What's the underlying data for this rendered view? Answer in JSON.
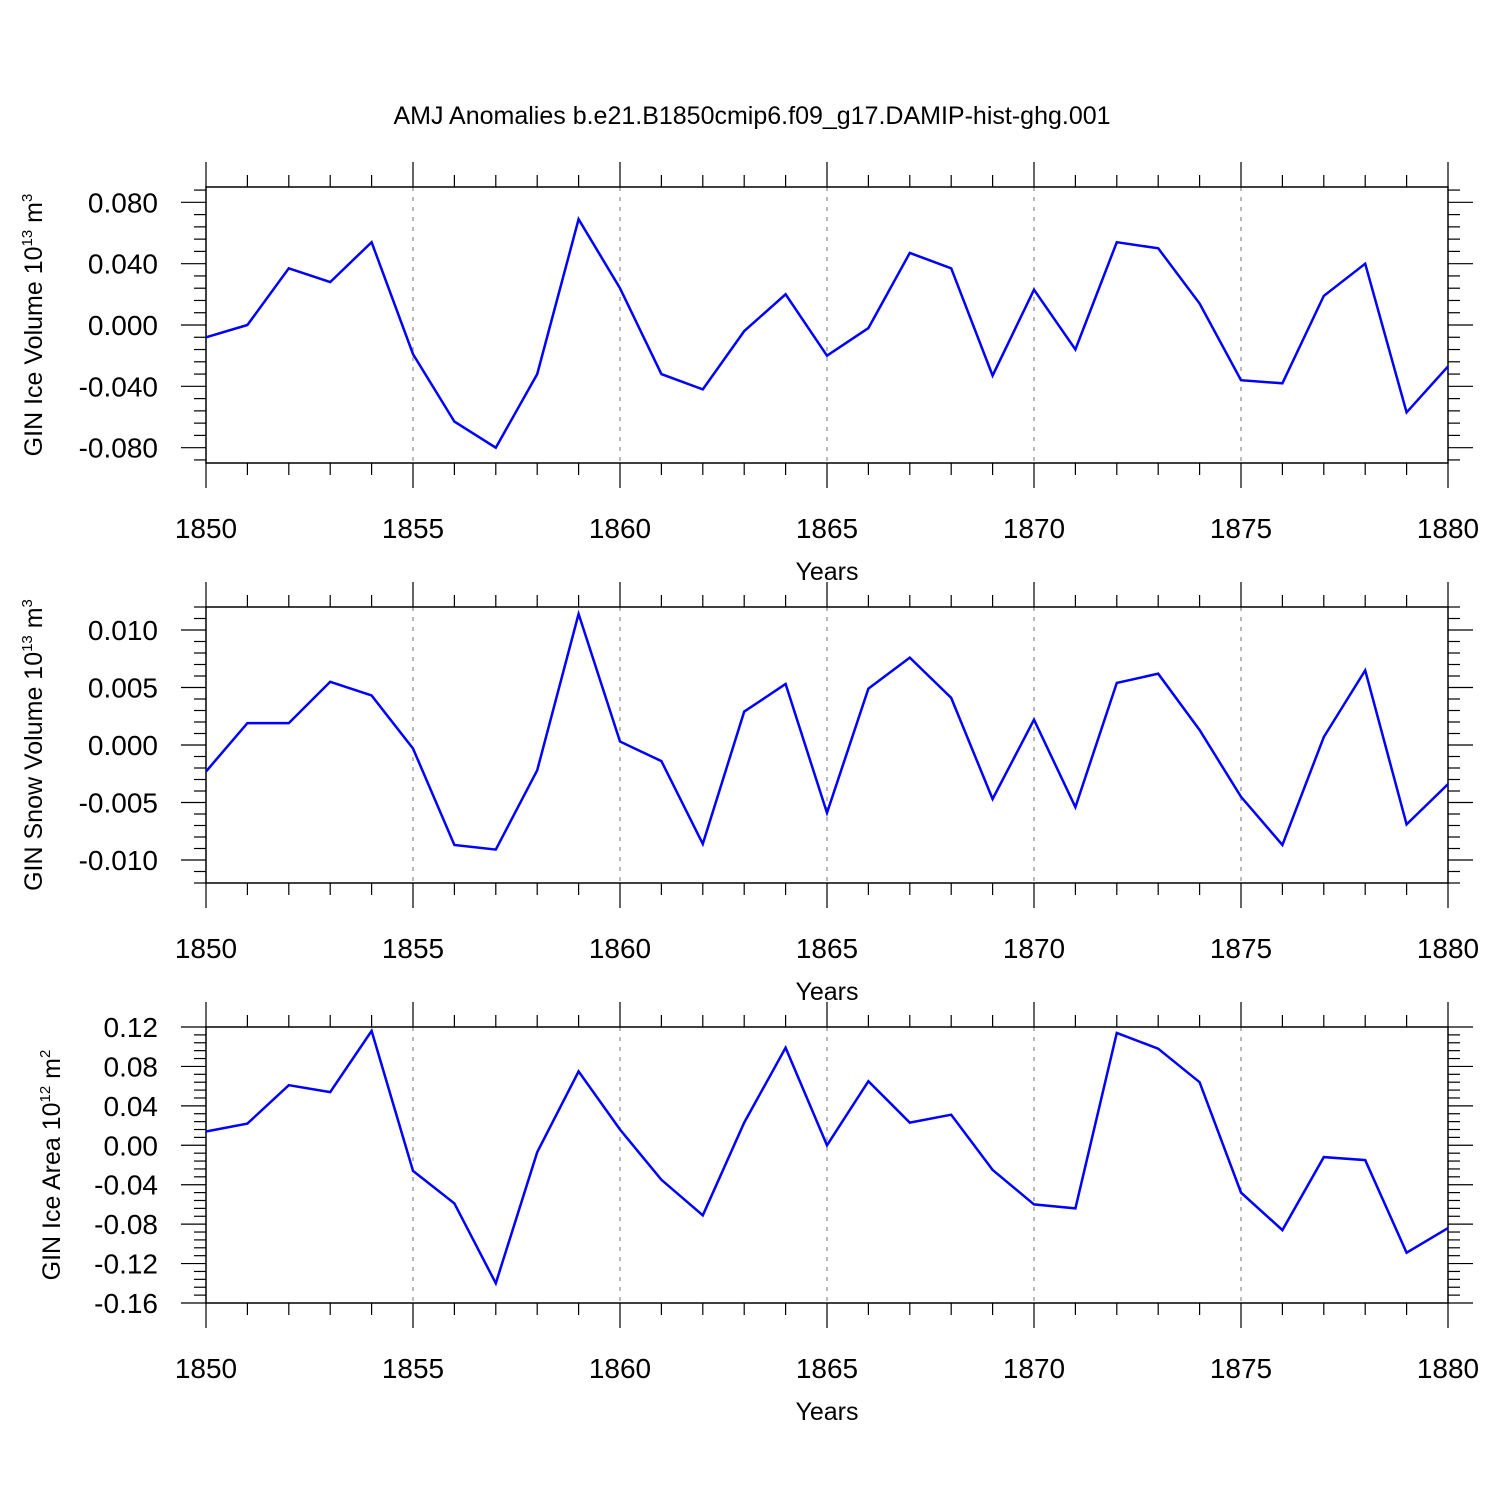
{
  "title": "AMJ Anomalies b.e21.B1850cmip6.f09_g17.DAMIP-hist-ghg.001",
  "colors": {
    "line": "#0000ff",
    "axis": "#000000",
    "grid": "#8c8c8c"
  },
  "chart_data": [
    {
      "type": "line",
      "ylabel": {
        "text": "GIN Ice Volume 10",
        "sup": "13",
        "unit": " m",
        "unit_sup": "3"
      },
      "xlabel": "Years",
      "xlim": [
        1850,
        1880
      ],
      "ylim": [
        -0.09,
        0.09
      ],
      "xticks": [
        1850,
        1855,
        1860,
        1865,
        1870,
        1875,
        1880
      ],
      "xtick_labels": [
        "1850",
        "1855",
        "1860",
        "1865",
        "1870",
        "1875",
        "1880"
      ],
      "yticks": [
        -0.08,
        -0.04,
        0.0,
        0.04,
        0.08
      ],
      "ytick_labels": [
        "-0.080",
        "-0.040",
        "0.000",
        "0.040",
        "0.080"
      ],
      "grid": "vertical dashed at major x ticks",
      "series": [
        {
          "x": [
            1850,
            1851,
            1852,
            1853,
            1854,
            1855,
            1856,
            1857,
            1858,
            1859,
            1860,
            1861,
            1862,
            1863,
            1864,
            1865,
            1866,
            1867,
            1868,
            1869,
            1870,
            1871,
            1872,
            1873,
            1874,
            1875,
            1876,
            1877,
            1878,
            1879,
            1880
          ],
          "values": [
            -0.008,
            0.0,
            0.037,
            0.028,
            0.054,
            -0.019,
            -0.063,
            -0.08,
            -0.032,
            0.069,
            0.024,
            -0.032,
            -0.042,
            -0.004,
            0.02,
            -0.02,
            -0.002,
            0.047,
            0.037,
            -0.033,
            0.023,
            -0.016,
            0.054,
            0.05,
            0.014,
            -0.036,
            -0.038,
            0.019,
            0.04,
            -0.057,
            -0.027
          ]
        }
      ]
    },
    {
      "type": "line",
      "ylabel": {
        "text": "GIN Snow Volume 10",
        "sup": "13",
        "unit": " m",
        "unit_sup": "3"
      },
      "xlabel": "Years",
      "xlim": [
        1850,
        1880
      ],
      "ylim": [
        -0.012,
        0.012
      ],
      "xticks": [
        1850,
        1855,
        1860,
        1865,
        1870,
        1875,
        1880
      ],
      "xtick_labels": [
        "1850",
        "1855",
        "1860",
        "1865",
        "1870",
        "1875",
        "1880"
      ],
      "yticks": [
        -0.01,
        -0.005,
        0.0,
        0.005,
        0.01
      ],
      "ytick_labels": [
        "-0.010",
        "-0.005",
        "0.000",
        "0.005",
        "0.010"
      ],
      "grid": "vertical dashed at major x ticks",
      "series": [
        {
          "x": [
            1850,
            1851,
            1852,
            1853,
            1854,
            1855,
            1856,
            1857,
            1858,
            1859,
            1860,
            1861,
            1862,
            1863,
            1864,
            1865,
            1866,
            1867,
            1868,
            1869,
            1870,
            1871,
            1872,
            1873,
            1874,
            1875,
            1876,
            1877,
            1878,
            1879,
            1880
          ],
          "values": [
            -0.0023,
            0.0019,
            0.0019,
            0.0055,
            0.0043,
            -0.0003,
            -0.0087,
            -0.0091,
            -0.0022,
            0.0114,
            0.0003,
            -0.0014,
            -0.0086,
            0.0029,
            0.0053,
            -0.0059,
            0.0049,
            0.0076,
            0.0041,
            -0.0047,
            0.0022,
            -0.0054,
            0.0054,
            0.0062,
            0.0013,
            -0.0045,
            -0.0087,
            0.0007,
            0.0065,
            -0.0069,
            -0.0034
          ]
        }
      ]
    },
    {
      "type": "line",
      "ylabel": {
        "text": "GIN Ice Area 10",
        "sup": "12",
        "unit": " m",
        "unit_sup": "2"
      },
      "xlabel": "Years",
      "xlim": [
        1850,
        1880
      ],
      "ylim": [
        -0.16,
        0.12
      ],
      "xticks": [
        1850,
        1855,
        1860,
        1865,
        1870,
        1875,
        1880
      ],
      "xtick_labels": [
        "1850",
        "1855",
        "1860",
        "1865",
        "1870",
        "1875",
        "1880"
      ],
      "yticks": [
        -0.16,
        -0.12,
        -0.08,
        -0.04,
        0.0,
        0.04,
        0.08,
        0.12
      ],
      "ytick_labels": [
        "-0.16",
        "-0.12",
        "-0.08",
        "-0.04",
        "0.00",
        "0.04",
        "0.08",
        "0.12"
      ],
      "grid": "vertical dashed at major x ticks",
      "series": [
        {
          "x": [
            1850,
            1851,
            1852,
            1853,
            1854,
            1855,
            1856,
            1857,
            1858,
            1859,
            1860,
            1861,
            1862,
            1863,
            1864,
            1865,
            1866,
            1867,
            1868,
            1869,
            1870,
            1871,
            1872,
            1873,
            1874,
            1875,
            1876,
            1877,
            1878,
            1879,
            1880
          ],
          "values": [
            0.014,
            0.022,
            0.061,
            0.054,
            0.116,
            -0.026,
            -0.059,
            -0.14,
            -0.007,
            0.075,
            0.016,
            -0.035,
            -0.071,
            0.023,
            0.099,
            0.0,
            0.065,
            0.023,
            0.031,
            -0.025,
            -0.06,
            -0.064,
            0.114,
            0.098,
            0.064,
            -0.048,
            -0.086,
            -0.012,
            -0.015,
            -0.109,
            -0.084
          ]
        }
      ]
    }
  ]
}
